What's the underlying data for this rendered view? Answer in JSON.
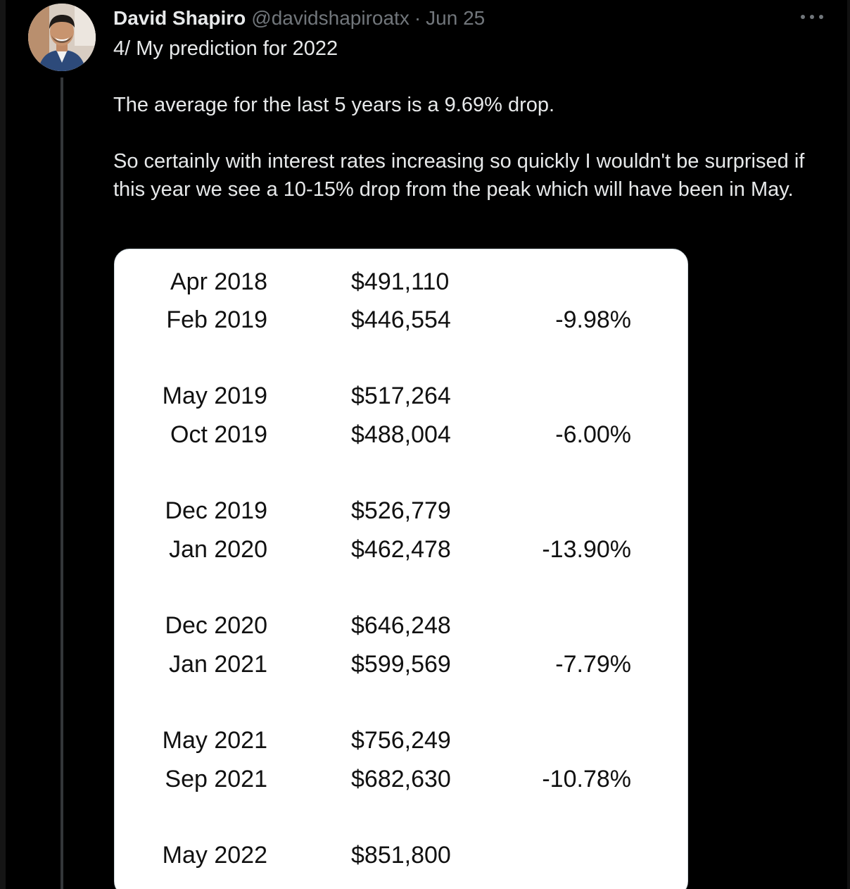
{
  "tweet": {
    "author_name": "David Shapiro",
    "handle": "@davidshapiroatx",
    "separator": "·",
    "date": "Jun 25",
    "more_icon": "more-horizontal-icon",
    "avatar_alt": "avatar",
    "text_line1": "4/ My prediction for 2022",
    "text_line2": "The average for the last 5 years is a 9.69% drop.",
    "text_line3": "So certainly with interest rates increasing so quickly I wouldn't be surprised if this year we see a 10-15% drop from the peak which will have been in May."
  },
  "table": {
    "groups": [
      {
        "rows": [
          {
            "date": "Apr 2018",
            "price": "$491,110",
            "change": ""
          },
          {
            "date": "Feb 2019",
            "price": "$446,554",
            "change": "-9.98%"
          }
        ]
      },
      {
        "rows": [
          {
            "date": "May 2019",
            "price": "$517,264",
            "change": ""
          },
          {
            "date": "Oct 2019",
            "price": "$488,004",
            "change": "-6.00%"
          }
        ]
      },
      {
        "rows": [
          {
            "date": "Dec 2019",
            "price": "$526,779",
            "change": ""
          },
          {
            "date": "Jan 2020",
            "price": "$462,478",
            "change": "-13.90%"
          }
        ]
      },
      {
        "rows": [
          {
            "date": "Dec 2020",
            "price": "$646,248",
            "change": ""
          },
          {
            "date": "Jan 2021",
            "price": "$599,569",
            "change": "-7.79%"
          }
        ]
      },
      {
        "rows": [
          {
            "date": "May 2021",
            "price": "$756,249",
            "change": ""
          },
          {
            "date": "Sep 2021",
            "price": "$682,630",
            "change": "-10.78%"
          }
        ]
      },
      {
        "rows": [
          {
            "date": "May 2022",
            "price": "$851,800",
            "change": ""
          }
        ]
      }
    ]
  }
}
